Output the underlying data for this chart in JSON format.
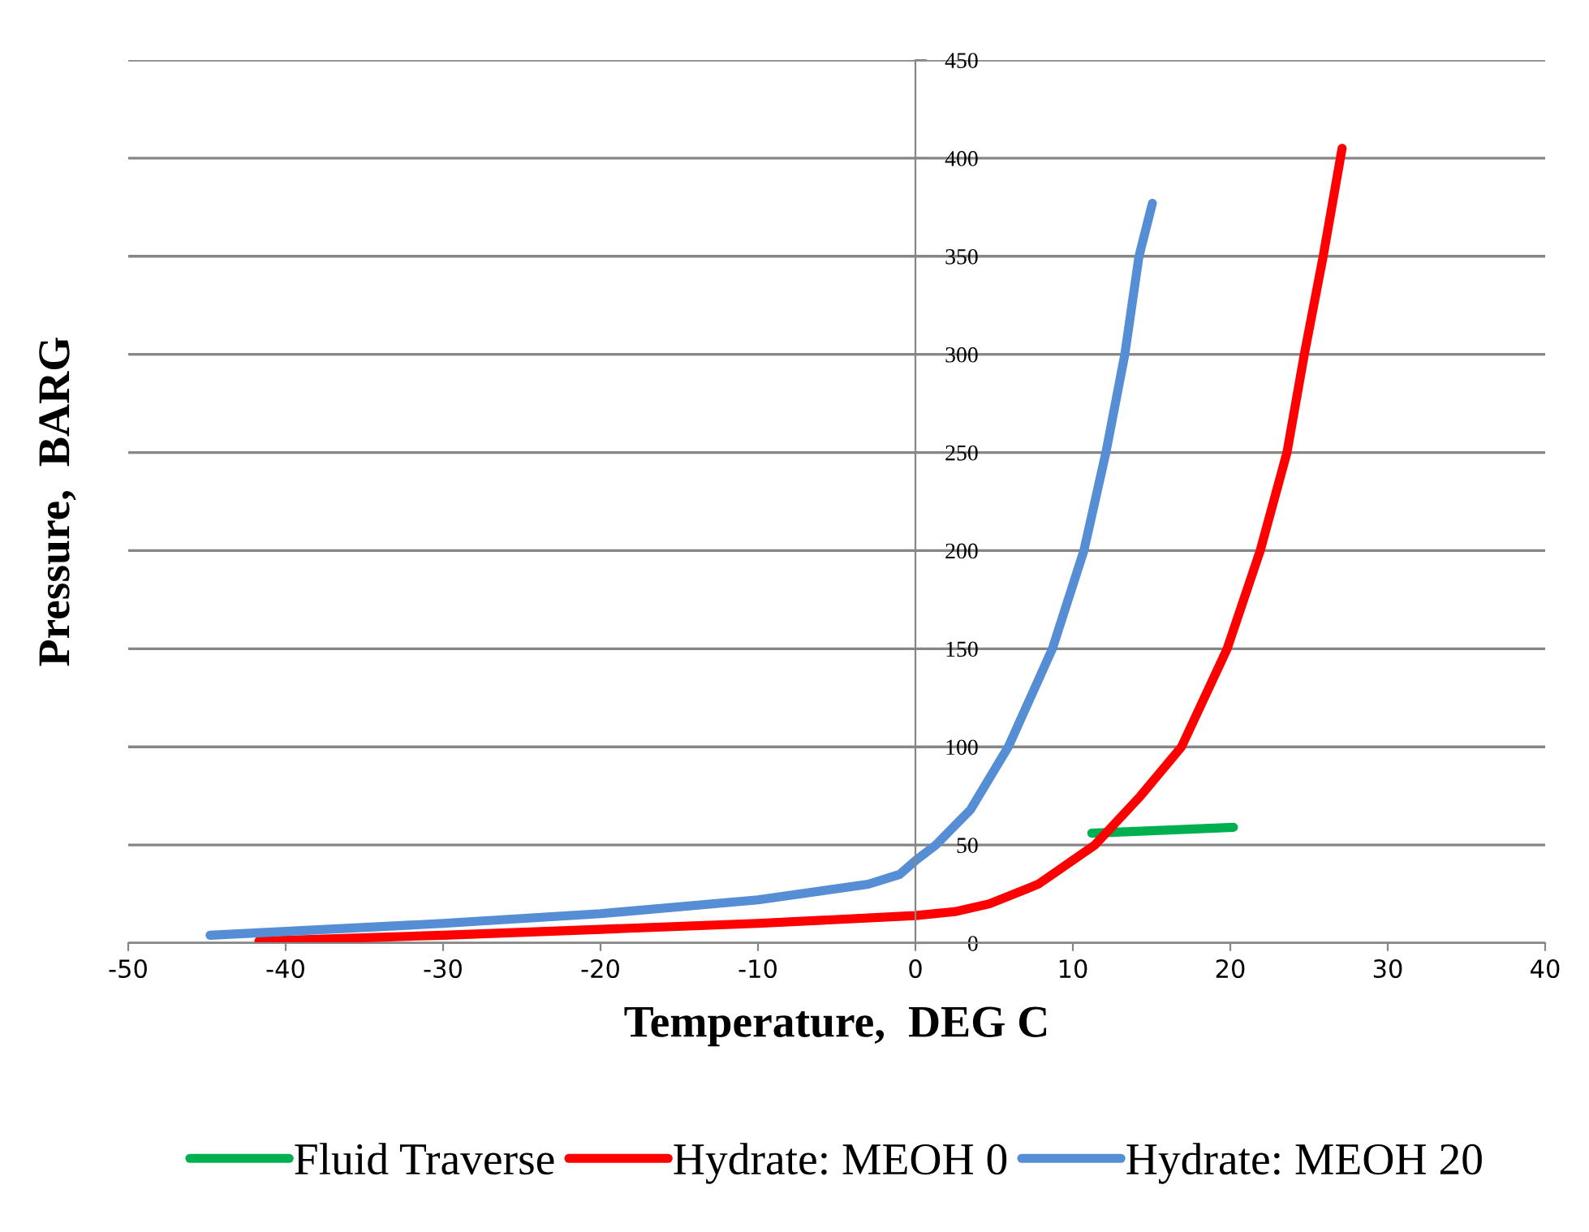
{
  "chart_data": {
    "type": "line",
    "xlabel": "Temperature,  DEG C",
    "ylabel": "Pressure,  BARG",
    "xlim": [
      -50,
      40
    ],
    "xticks": [
      -50,
      -40,
      -30,
      -20,
      -10,
      0,
      10,
      20,
      30,
      40
    ],
    "ylim": [
      0,
      450
    ],
    "yticks": [
      0,
      50,
      100,
      150,
      200,
      250,
      300,
      350,
      400,
      450
    ],
    "grid": "y",
    "legend": "bottom",
    "marker": "none",
    "line_style": "solid",
    "series": [
      {
        "name": "Fluid Traverse",
        "color": "#00b050",
        "x": [
          11.2,
          20.2
        ],
        "values": [
          56,
          59
        ]
      },
      {
        "name": "Hydrate: MEOH 0",
        "color": "#ff0000",
        "x": [
          -41.7,
          -30,
          -20,
          -10,
          0,
          2.5,
          4.7,
          7.8,
          11.4,
          14.3,
          16.9,
          19.8,
          21.9,
          23.6,
          24.7,
          25.9,
          27.1
        ],
        "values": [
          1,
          4,
          7,
          10,
          14,
          16,
          20,
          30,
          50,
          75,
          100,
          150,
          200,
          250,
          300,
          350,
          405
        ]
      },
      {
        "name": "Hydrate: MEOH 20",
        "color": "#558ed5",
        "x": [
          -44.8,
          -30,
          -20,
          -10,
          -3,
          -1,
          0,
          1.3,
          3.5,
          5.9,
          8.7,
          10.7,
          12.1,
          13.3,
          14.2,
          15.05
        ],
        "values": [
          4,
          10,
          15,
          22,
          30,
          35,
          42,
          50,
          68,
          100,
          150,
          200,
          250,
          300,
          350,
          377
        ]
      }
    ]
  }
}
